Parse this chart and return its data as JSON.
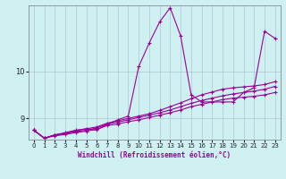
{
  "xlabel": "Windchill (Refroidissement éolien,°C)",
  "background_color": "#cff0f0",
  "line_color": "#990099",
  "xlim": [
    -0.5,
    23.5
  ],
  "ylim": [
    8.55,
    11.4
  ],
  "yticks": [
    9,
    10
  ],
  "xticks": [
    0,
    1,
    2,
    3,
    4,
    5,
    6,
    7,
    8,
    9,
    10,
    11,
    12,
    13,
    14,
    15,
    16,
    17,
    18,
    19,
    20,
    21,
    22,
    23
  ],
  "series": [
    [
      8.75,
      8.58,
      8.65,
      8.7,
      8.75,
      8.78,
      8.75,
      8.88,
      8.97,
      9.05,
      10.1,
      10.6,
      11.05,
      11.35,
      10.75,
      9.5,
      9.35,
      9.35,
      9.35,
      9.35,
      9.55,
      9.65,
      10.85,
      10.7
    ],
    [
      8.75,
      8.58,
      8.65,
      8.68,
      8.72,
      8.75,
      8.8,
      8.88,
      8.92,
      8.97,
      9.02,
      9.07,
      9.12,
      9.18,
      9.25,
      9.32,
      9.38,
      9.43,
      9.48,
      9.52,
      9.55,
      9.58,
      9.62,
      9.68
    ],
    [
      8.75,
      8.58,
      8.65,
      8.68,
      8.74,
      8.78,
      8.82,
      8.9,
      8.95,
      9.0,
      9.05,
      9.1,
      9.17,
      9.25,
      9.33,
      9.42,
      9.5,
      9.56,
      9.62,
      9.65,
      9.67,
      9.69,
      9.72,
      9.78
    ],
    [
      8.75,
      8.58,
      8.63,
      8.66,
      8.7,
      8.73,
      8.77,
      8.85,
      8.88,
      8.93,
      8.97,
      9.02,
      9.07,
      9.12,
      9.18,
      9.25,
      9.3,
      9.35,
      9.4,
      9.43,
      9.45,
      9.47,
      9.5,
      9.55
    ]
  ]
}
